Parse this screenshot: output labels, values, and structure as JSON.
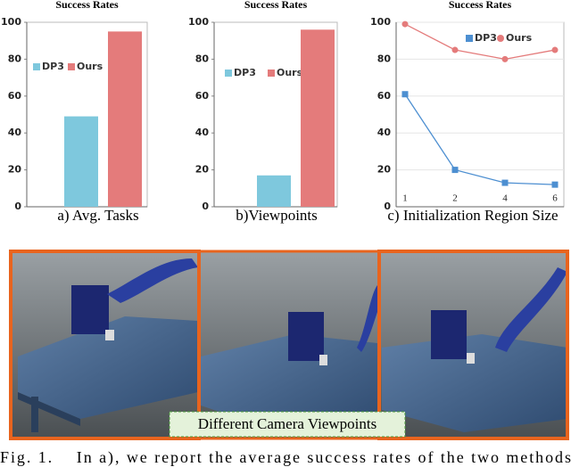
{
  "chart_data": [
    {
      "type": "bar",
      "title": "Success Rates",
      "categories": [
        null
      ],
      "series": [
        {
          "name": "DP3",
          "color": "#7ec8dd",
          "values": [
            49
          ]
        },
        {
          "name": "Ours",
          "color": "#e47b7b",
          "values": [
            95
          ]
        }
      ],
      "ylim": [
        0,
        100
      ],
      "yticks": [
        0,
        20,
        40,
        60,
        80,
        100
      ]
    },
    {
      "type": "bar",
      "title": "Success Rates",
      "categories": [
        null
      ],
      "series": [
        {
          "name": "DP3",
          "color": "#7ec8dd",
          "values": [
            17
          ]
        },
        {
          "name": "Ours",
          "color": "#e47b7b",
          "values": [
            96
          ]
        }
      ],
      "ylim": [
        0,
        100
      ],
      "yticks": [
        0,
        20,
        40,
        60,
        80,
        100
      ]
    },
    {
      "type": "line",
      "title": "Success Rates",
      "categories": [
        "1",
        "2",
        "4",
        "6"
      ],
      "series": [
        {
          "name": "DP3",
          "color": "#4d8fd1",
          "values": [
            61,
            20,
            13,
            12
          ]
        },
        {
          "name": "Ours",
          "color": "#e47b7b",
          "values": [
            99,
            85,
            80,
            85
          ]
        }
      ],
      "ylim": [
        0,
        100
      ],
      "yticks": [
        0,
        20,
        40,
        60,
        80,
        100
      ],
      "grid": true
    }
  ],
  "subcaptions": [
    "a) Avg. Tasks",
    "b)Viewpoints",
    "c) Initialization Region Size"
  ],
  "image_label": "Different Camera Viewpoints",
  "caption": "Fig. 1.    In a), we report the average success rates of the two methods"
}
